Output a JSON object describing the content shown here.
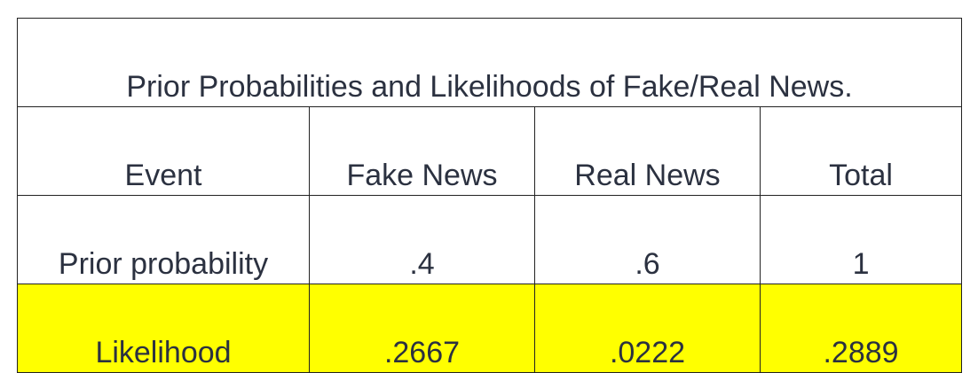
{
  "table": {
    "title": "Prior Probabilities and Likelihoods of Fake/Real News.",
    "headers": [
      "Event",
      "Fake News",
      "Real News",
      "Total"
    ],
    "rows": [
      {
        "label": "Prior probability",
        "fake": ".4",
        "real": ".6",
        "total": "1"
      },
      {
        "label": "Likelihood",
        "fake": ".2667",
        "real": ".0222",
        "total": ".2889"
      }
    ],
    "highlight_color": "#ffff00"
  }
}
